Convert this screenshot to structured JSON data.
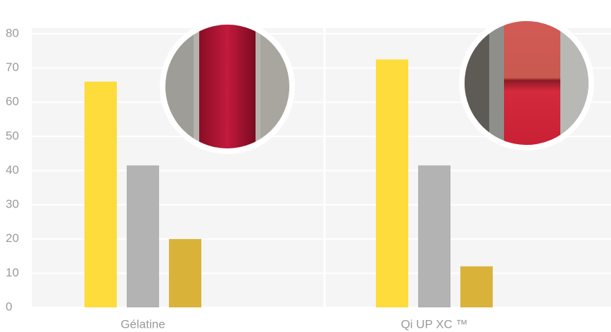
{
  "chart_data": {
    "type": "bar",
    "categories": [
      "Gélatine",
      "Qi UP XC ™"
    ],
    "series": [
      {
        "color": "#fddc3c",
        "values": [
          66,
          72.5
        ]
      },
      {
        "color": "#b3b3b3",
        "values": [
          41.5,
          41.5
        ]
      },
      {
        "color": "#d9b23a",
        "values": [
          20,
          12
        ]
      }
    ],
    "ylim": [
      0,
      80
    ],
    "yticks": [
      0,
      10,
      20,
      30,
      40,
      50,
      60,
      70,
      80
    ],
    "grid": true
  }
}
